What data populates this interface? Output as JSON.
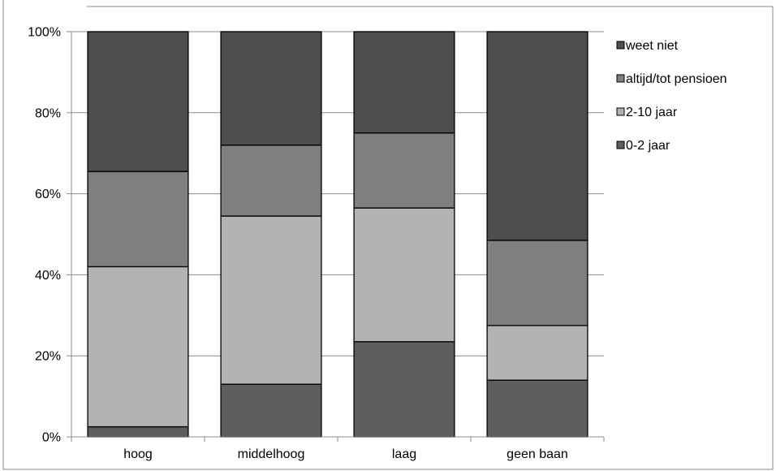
{
  "chart_data": {
    "type": "bar",
    "stacked": true,
    "percent": true,
    "categories": [
      "hoog",
      "middelhoog",
      "laag",
      "geen baan"
    ],
    "series": [
      {
        "name": "0-2 jaar",
        "color": "#5e5e5e",
        "values": [
          2.5,
          13,
          23.5,
          14
        ]
      },
      {
        "name": "2-10 jaar",
        "color": "#b3b3b3",
        "values": [
          39.5,
          41.5,
          33,
          13.5
        ]
      },
      {
        "name": "altijd/tot pensioen",
        "color": "#7f7f7f",
        "values": [
          23.5,
          17.5,
          18.5,
          21
        ]
      },
      {
        "name": "weet niet",
        "color": "#4e4e4e",
        "values": [
          34.5,
          28,
          25,
          51.5
        ]
      }
    ],
    "ylim": [
      0,
      100
    ],
    "yticks": [
      "0%",
      "20%",
      "40%",
      "60%",
      "80%",
      "100%"
    ],
    "grid": true,
    "legend_position": "right",
    "legend_order": [
      "weet niet",
      "altijd/tot pensioen",
      "2-10 jaar",
      "0-2 jaar"
    ]
  }
}
